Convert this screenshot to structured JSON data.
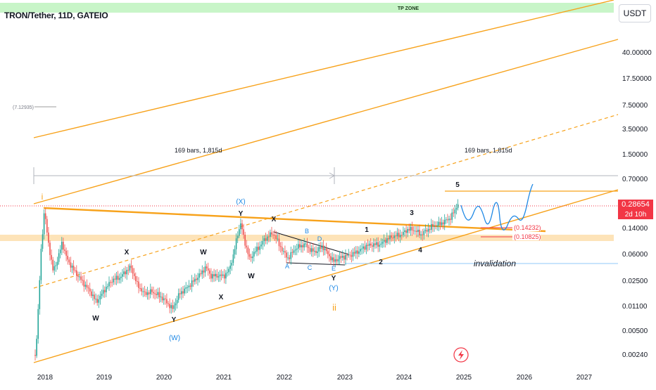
{
  "symbol": {
    "title": "TRON/Tether, 11D, GATEIO",
    "currency": "USDT"
  },
  "chart_data": {
    "type": "candlestick",
    "x_ticks": [
      "2018",
      "2019",
      "2020",
      "2021",
      "2022",
      "2023",
      "2024",
      "2025",
      "2026",
      "2027"
    ],
    "y_ticks": [
      "40.00000",
      "17.50000",
      "7.50000",
      "3.50000",
      "1.50000",
      "0.70000",
      "0.14000",
      "0.06000",
      "0.02500",
      "0.01100",
      "0.00500",
      "0.00240"
    ],
    "y_scale": "log",
    "last_price": "0.28654",
    "countdown": "2d 10h",
    "levels": {
      "level_a": "(0.14232)",
      "level_b": "(0.10825)",
      "level_c": "(7.12935)"
    },
    "zones": {
      "tp_zone": "TP ZONE"
    },
    "measure": {
      "left": "169 bars, 1,815d",
      "right": "169 bars, 1,815d"
    },
    "annotations": {
      "i": "i",
      "ii": "ii",
      "W": "W",
      "X": "X",
      "Y": "Y",
      "XX": "(X)",
      "WW": "(W)",
      "YY": "(Y)",
      "A": "A",
      "B": "B",
      "C": "C",
      "D": "D",
      "E": "E",
      "n1": "1",
      "n2": "2",
      "n3": "3",
      "n4": "4",
      "n5": "5",
      "invalidation": "invalidation"
    },
    "colors": {
      "up": "#26a69a",
      "down": "#ef5350",
      "orange": "#f7a21b",
      "blue": "#1e88e5",
      "last_price": "#f23645",
      "tp_zone": "#c8f5c8"
    }
  }
}
